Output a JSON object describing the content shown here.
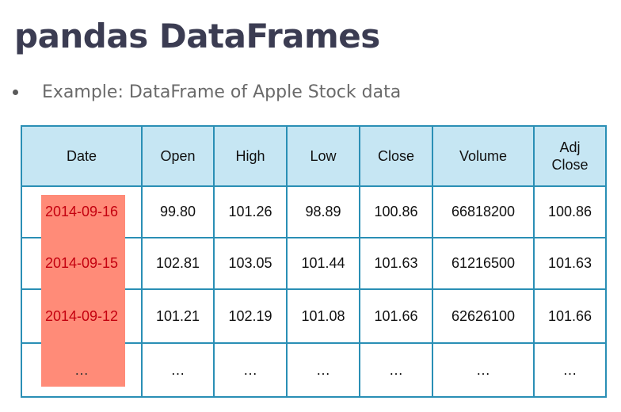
{
  "slide": {
    "title": "pandas DataFrames",
    "bullet": "Example: DataFrame of Apple Stock data"
  },
  "table": {
    "columns": [
      "Date",
      "Open",
      "High",
      "Low",
      "Close",
      "Volume",
      "Adj Close"
    ],
    "rows": [
      [
        "2014-09-16",
        "99.80",
        "101.26",
        "98.89",
        "100.86",
        "66818200",
        "100.86"
      ],
      [
        "2014-09-15",
        "102.81",
        "103.05",
        "101.44",
        "101.63",
        "61216500",
        "101.63"
      ],
      [
        "2014-09-12",
        "101.21",
        "102.19",
        "101.08",
        "101.66",
        "62626100",
        "101.66"
      ],
      [
        "…",
        "…",
        "…",
        "…",
        "…",
        "…",
        "…"
      ]
    ]
  },
  "colors": {
    "title": "#3b3c52",
    "header_bg": "#c6e6f3",
    "border": "#2a8fb5",
    "date_highlight": "#ff8b78",
    "date_text": "#c4000f"
  }
}
